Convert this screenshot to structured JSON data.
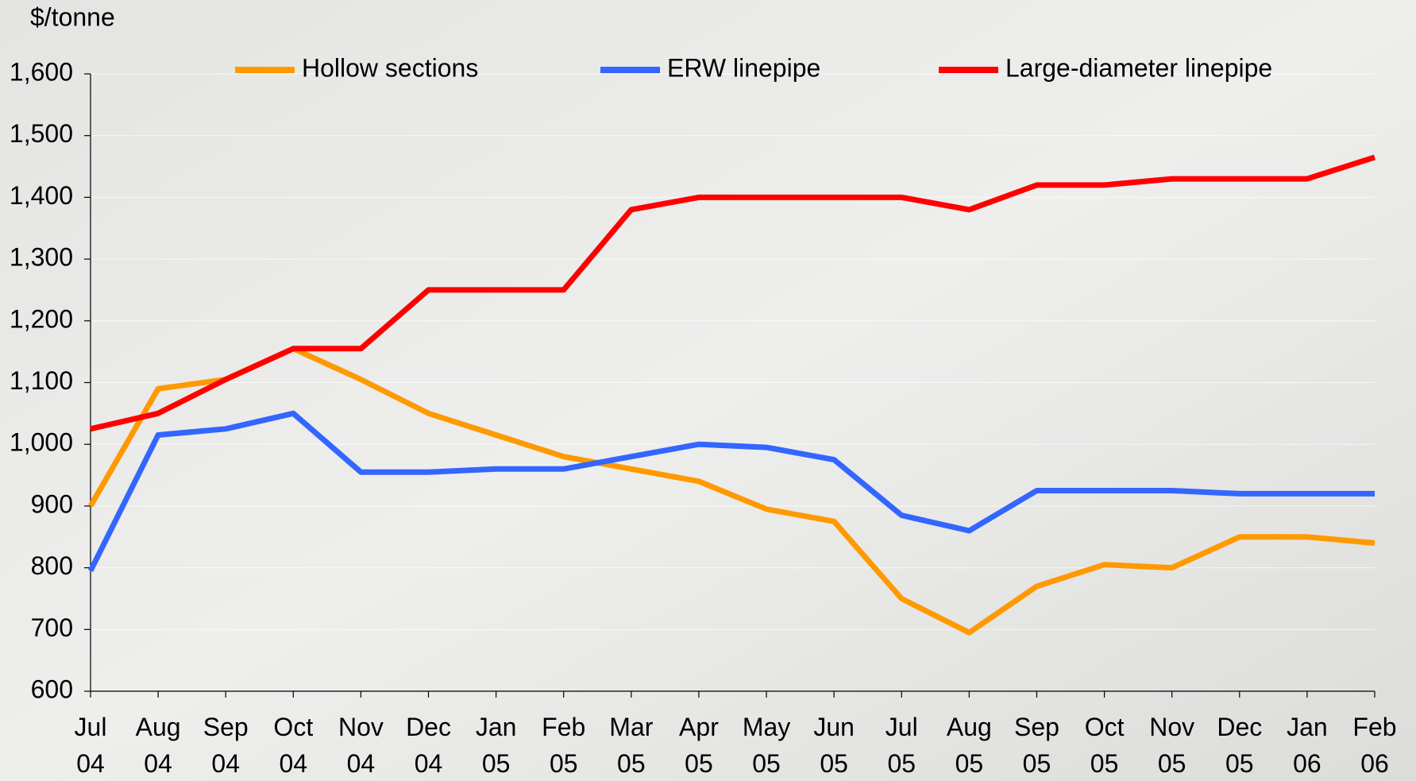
{
  "chart_data": {
    "type": "line",
    "y_axis_label": "$/tonne",
    "categories": [
      "Jul 04",
      "Aug 04",
      "Sep 04",
      "Oct 04",
      "Nov 04",
      "Dec 04",
      "Jan 05",
      "Feb 05",
      "Mar 05",
      "Apr 05",
      "May 05",
      "Jun 05",
      "Jul 05",
      "Aug 05",
      "Sep 05",
      "Oct 05",
      "Nov 05",
      "Dec 05",
      "Jan 06",
      "Feb 06"
    ],
    "series": [
      {
        "name": "Hollow sections",
        "color": "#ff9900",
        "values": [
          900,
          1090,
          1105,
          1155,
          1105,
          1050,
          1015,
          980,
          960,
          940,
          895,
          875,
          750,
          695,
          770,
          805,
          800,
          850,
          850,
          840
        ]
      },
      {
        "name": "ERW linepipe",
        "color": "#3366ff",
        "values": [
          795,
          1015,
          1025,
          1050,
          955,
          955,
          960,
          960,
          980,
          1000,
          995,
          975,
          885,
          860,
          925,
          925,
          925,
          920,
          920,
          920
        ]
      },
      {
        "name": "Large-diameter linepipe",
        "color": "#ff0000",
        "values": [
          1025,
          1050,
          1105,
          1155,
          1155,
          1250,
          1250,
          1250,
          1380,
          1400,
          1400,
          1400,
          1400,
          1380,
          1420,
          1420,
          1430,
          1430,
          1430,
          1465
        ]
      }
    ],
    "ylim": [
      600,
      1600
    ],
    "yticks": [
      600,
      700,
      800,
      900,
      {
        "value": 1000,
        "label": "1,000"
      },
      {
        "value": 1100,
        "label": "1,100"
      },
      {
        "value": 1200,
        "label": "1,200"
      },
      {
        "value": 1300,
        "label": "1,300"
      },
      {
        "value": 1400,
        "label": "1,400"
      },
      {
        "value": 1500,
        "label": "1,500"
      },
      {
        "value": 1600,
        "label": "1,600"
      }
    ],
    "grid": true
  }
}
